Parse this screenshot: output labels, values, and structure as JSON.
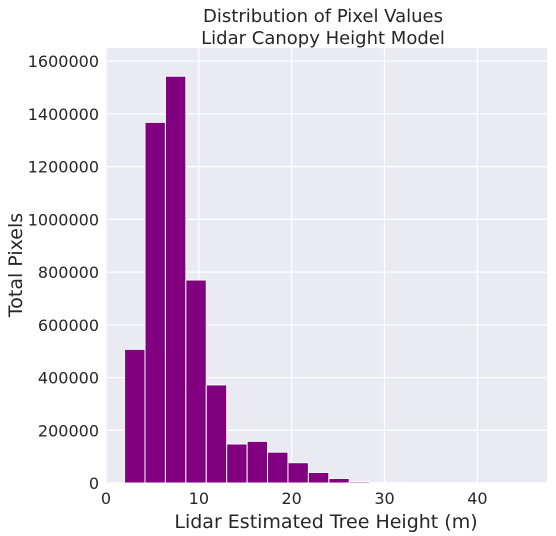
{
  "chart_data": {
    "type": "bar",
    "title_line1": "Distribution of Pixel Values",
    "title_line2": "Lidar Canopy Height Model",
    "xlabel": "Lidar Estimated Tree Height (m)",
    "ylabel": "Total Pixels",
    "xlim": [
      0,
      47.5
    ],
    "ylim": [
      0,
      1650000
    ],
    "x_ticks": [
      0,
      10,
      20,
      30,
      40
    ],
    "x_tick_labels": [
      "0",
      "10",
      "20",
      "30",
      "40"
    ],
    "y_ticks": [
      0,
      200000,
      400000,
      600000,
      800000,
      1000000,
      1200000,
      1400000,
      1600000
    ],
    "y_tick_labels": [
      "0",
      "200000",
      "400000",
      "600000",
      "800000",
      "1000000",
      "1200000",
      "1400000",
      "1600000"
    ],
    "bin_width": 2.2,
    "bins": [
      {
        "x0": 2.0,
        "x1": 4.2,
        "value": 507000
      },
      {
        "x0": 4.2,
        "x1": 6.4,
        "value": 1368000
      },
      {
        "x0": 6.4,
        "x1": 8.6,
        "value": 1543000
      },
      {
        "x0": 8.6,
        "x1": 10.8,
        "value": 770000
      },
      {
        "x0": 10.8,
        "x1": 13.0,
        "value": 372000
      },
      {
        "x0": 13.0,
        "x1": 15.2,
        "value": 148000
      },
      {
        "x0": 15.2,
        "x1": 17.4,
        "value": 158000
      },
      {
        "x0": 17.4,
        "x1": 19.6,
        "value": 117000
      },
      {
        "x0": 19.6,
        "x1": 21.8,
        "value": 77000
      },
      {
        "x0": 21.8,
        "x1": 24.0,
        "value": 40000
      },
      {
        "x0": 24.0,
        "x1": 26.2,
        "value": 17000
      },
      {
        "x0": 26.2,
        "x1": 28.4,
        "value": 5000
      },
      {
        "x0": 28.4,
        "x1": 30.6,
        "value": 1500
      },
      {
        "x0": 30.6,
        "x1": 32.8,
        "value": 600
      },
      {
        "x0": 32.8,
        "x1": 35.0,
        "value": 300
      },
      {
        "x0": 35.0,
        "x1": 37.2,
        "value": 150
      },
      {
        "x0": 37.2,
        "x1": 39.4,
        "value": 80
      },
      {
        "x0": 39.4,
        "x1": 41.6,
        "value": 40
      },
      {
        "x0": 41.6,
        "x1": 43.8,
        "value": 20
      },
      {
        "x0": 43.8,
        "x1": 46.0,
        "value": 10
      }
    ],
    "bar_color": "#800080",
    "plot_background": "#eaeaf2",
    "grid": true,
    "legend": "none"
  }
}
